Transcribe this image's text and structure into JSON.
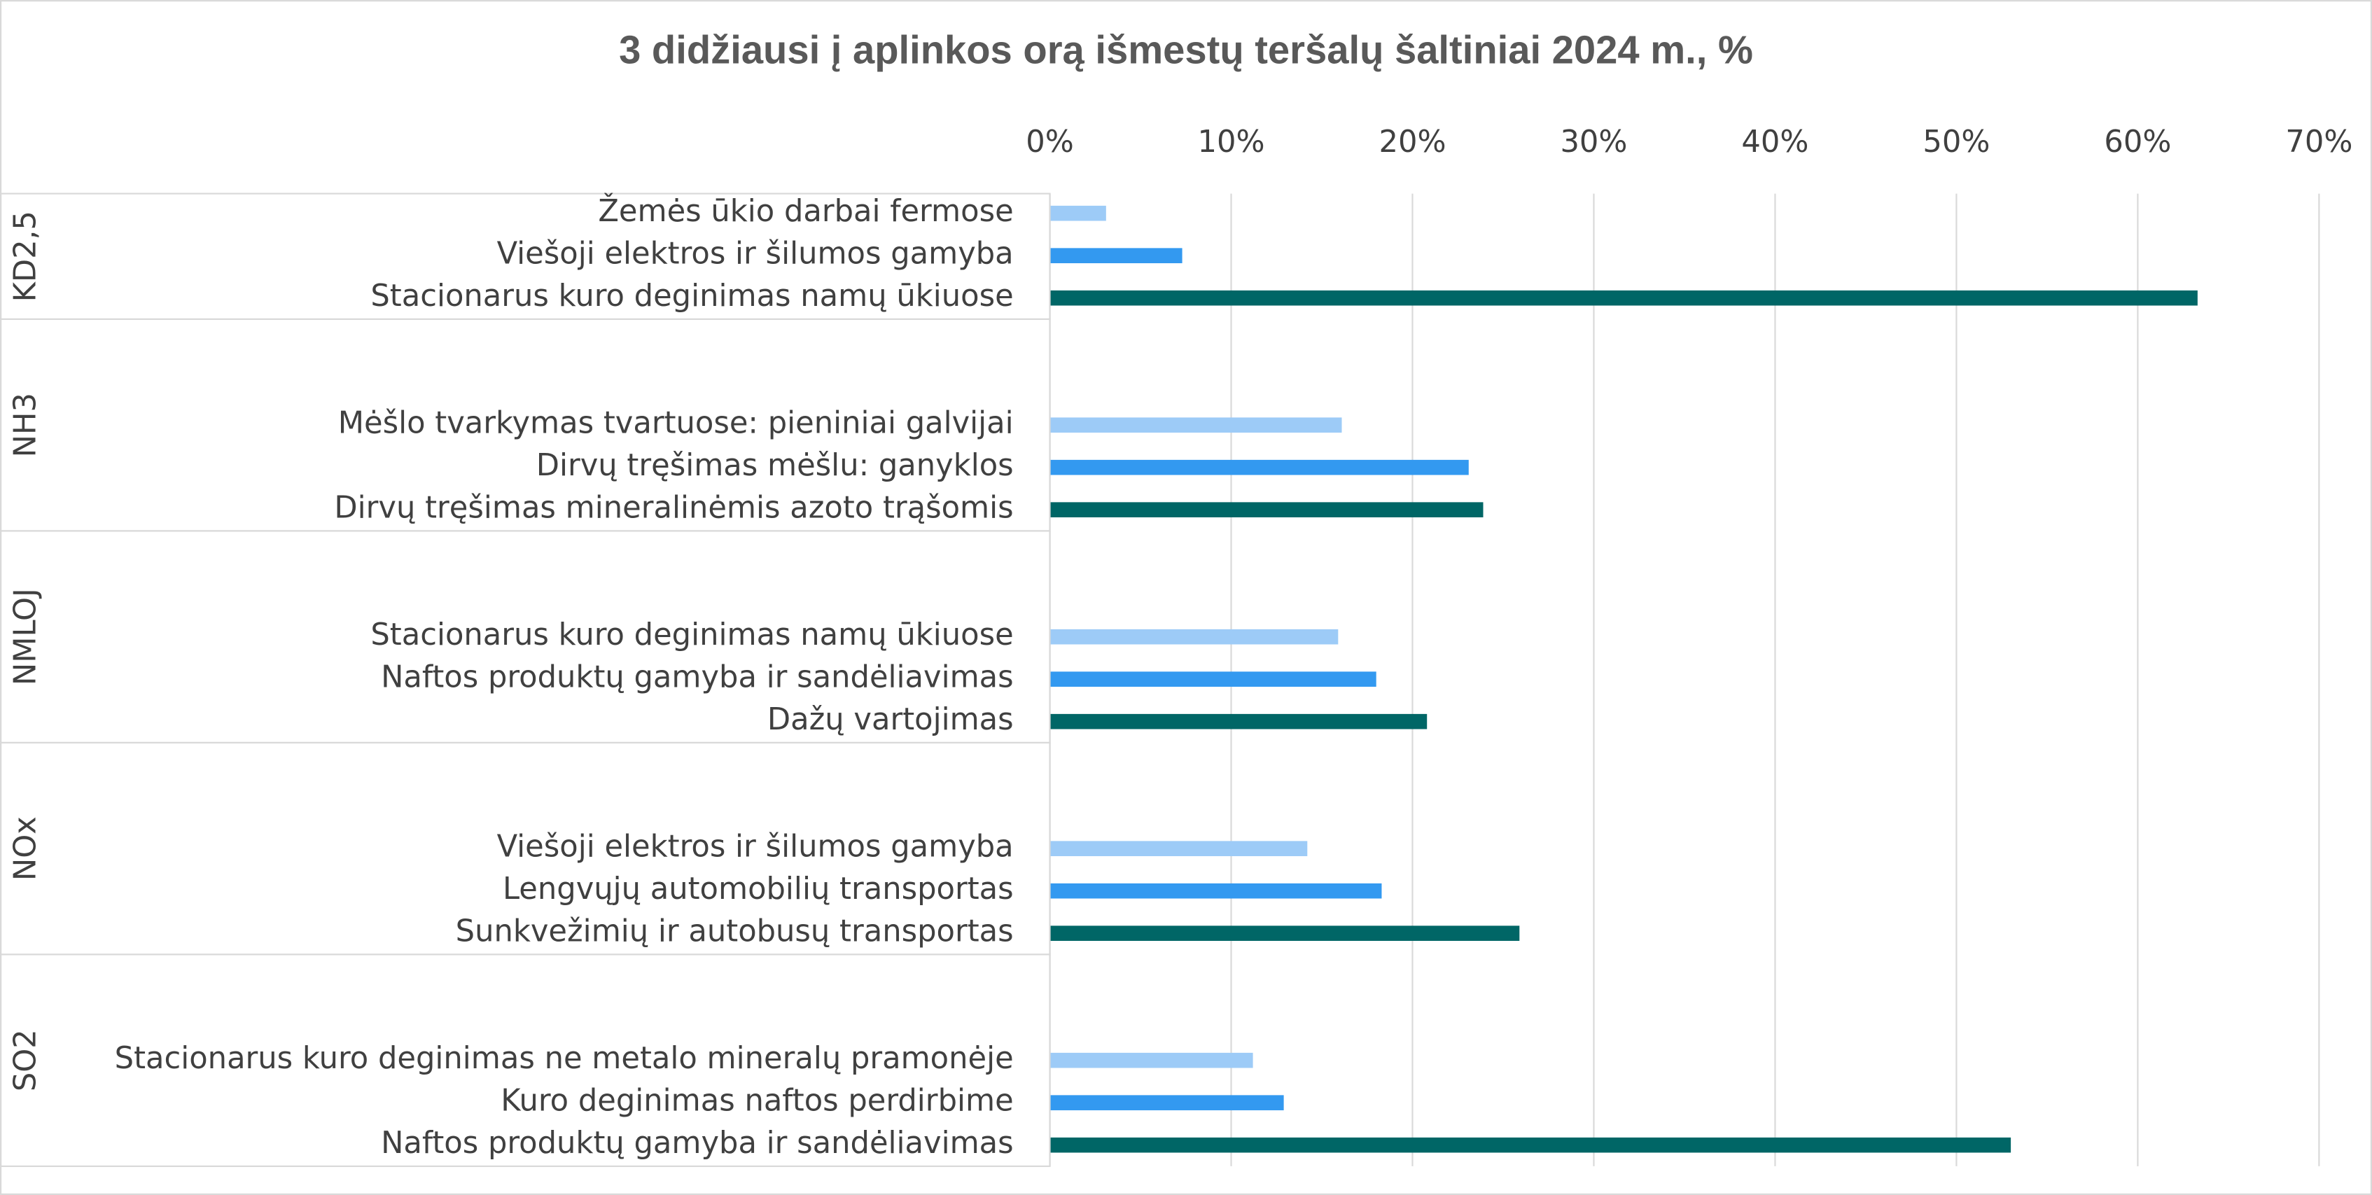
{
  "chart_data": {
    "type": "bar",
    "orientation": "horizontal",
    "title": "3 didžiausi į aplinkos orą išmestų teršalų šaltiniai 2024 m., %",
    "colors": [
      "#9dcbf7",
      "#3399f0",
      "#006666"
    ],
    "groups": [
      {
        "name": "KD2,5",
        "labels": [
          "Žemės ūkio darbai fermose",
          "Viešoji elektros ir šilumos gamyba",
          "Stacionarus kuro deginimas namų ūkiuose"
        ],
        "values": [
          3.1,
          7.3,
          63.3
        ]
      },
      {
        "name": "NH3",
        "labels": [
          "Mėšlo tvarkymas tvartuose: pieniniai galvijai",
          "Dirvų tręšimas mėšlu: ganyklos",
          "Dirvų tręšimas mineralinėmis azoto trąšomis"
        ],
        "values": [
          16.1,
          23.1,
          23.9
        ]
      },
      {
        "name": "NMLOJ",
        "labels": [
          "Stacionarus kuro deginimas namų ūkiuose",
          "Naftos produktų gamyba ir sandėliavimas",
          "Dažų vartojimas"
        ],
        "values": [
          15.9,
          18.0,
          20.8
        ]
      },
      {
        "name": "NOx",
        "labels": [
          "Viešoji elektros ir šilumos gamyba",
          "Lengvųjų automobilių transportas",
          "Sunkvežimių ir autobusų transportas"
        ],
        "values": [
          14.2,
          18.3,
          25.9
        ]
      },
      {
        "name": "SO2",
        "labels": [
          "Stacionarus kuro deginimas ne metalo mineralų pramonėje",
          "Kuro deginimas naftos perdirbime",
          "Naftos produktų gamyba ir sandėliavimas"
        ],
        "values": [
          11.2,
          12.9,
          53.0
        ]
      }
    ],
    "xlim": [
      0,
      70
    ],
    "xticks": [
      {
        "value": 0,
        "label": "0%"
      },
      {
        "value": 10,
        "label": "10%"
      },
      {
        "value": 20,
        "label": "20%"
      },
      {
        "value": 30,
        "label": "30%"
      },
      {
        "value": 40,
        "label": "40%"
      },
      {
        "value": 50,
        "label": "50%"
      },
      {
        "value": 60,
        "label": "60%"
      },
      {
        "value": 70,
        "label": "70%"
      }
    ],
    "grid": true
  }
}
